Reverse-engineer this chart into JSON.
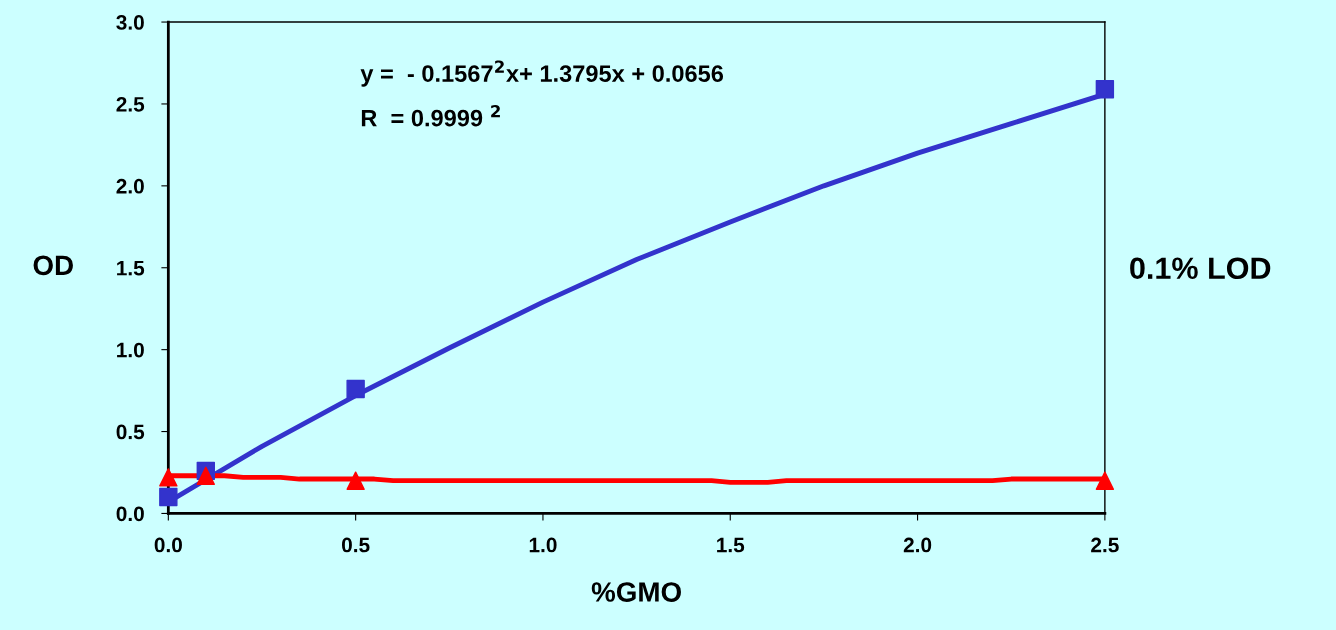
{
  "chart_data": {
    "type": "line",
    "xlabel": "%GMO",
    "ylabel": "OD",
    "xlim": [
      0,
      2.5
    ],
    "xticks": [
      {
        "value": 0,
        "label": "0.0"
      },
      0.5,
      {
        "value": 1,
        "label": "1.0"
      },
      1.5,
      {
        "value": 2,
        "label": "2.0"
      },
      2.5
    ],
    "ylim": [
      0,
      3
    ],
    "yticks": [
      {
        "value": 0,
        "label": "0.0"
      },
      0.5,
      {
        "value": 1,
        "label": "1.0"
      },
      1.5,
      {
        "value": 2,
        "label": "2.0"
      },
      2.5,
      {
        "value": 3,
        "label": "3.0"
      }
    ],
    "grid": false,
    "legend": false,
    "series": [
      {
        "color": "#3333cc",
        "marker": "none",
        "x": [
          0,
          0.25,
          0.5,
          0.75,
          1.0,
          1.25,
          1.5,
          1.75,
          2.0,
          2.25,
          2.5
        ],
        "values": [
          0.07,
          0.41,
          0.72,
          1.01,
          1.29,
          1.55,
          1.78,
          2.0,
          2.2,
          2.38,
          2.56
        ]
      },
      {
        "color": "#ff0000",
        "marker": "none",
        "x": [
          0,
          0.15,
          0.2,
          0.3,
          0.35,
          0.55,
          0.6,
          1.45,
          1.5,
          1.6,
          1.65,
          2.2,
          2.25,
          2.5
        ],
        "values": [
          0.23,
          0.23,
          0.22,
          0.22,
          0.21,
          0.21,
          0.2,
          0.2,
          0.19,
          0.19,
          0.2,
          0.2,
          0.21,
          0.21
        ]
      },
      {
        "type": "scatter",
        "color": "#3333cc",
        "marker": "square",
        "x": [
          0,
          0.1,
          0.5,
          2.5
        ],
        "values": [
          0.1,
          0.26,
          0.76,
          2.59
        ]
      },
      {
        "type": "scatter",
        "color": "#ff0000",
        "marker": "triangle",
        "x": [
          0,
          0.1,
          0.5,
          2.5
        ],
        "values": [
          0.22,
          0.23,
          0.2,
          0.2
        ]
      }
    ],
    "annotations": [
      "y =  - 0.1567$^{2}$x+ 1.3795x + 0.0656",
      "R  = 0.9999 $^{2}$",
      "0.1% LOD"
    ]
  }
}
